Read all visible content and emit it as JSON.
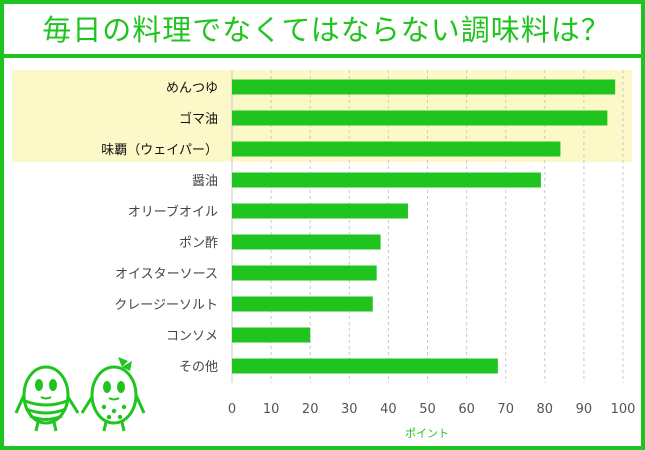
{
  "title": "毎日の料理でなくてはならない調味料は？",
  "chart_data": {
    "type": "bar",
    "orientation": "horizontal",
    "categories": [
      "めんつゆ",
      "ゴマ油",
      "味覇（ウェイパー）",
      "醤油",
      "オリーブオイル",
      "ポン酢",
      "オイスターソース",
      "クレージーソルト",
      "コンソメ",
      "その他"
    ],
    "values": [
      98,
      96,
      84,
      79,
      45,
      38,
      37,
      36,
      20,
      68
    ],
    "xlim": [
      0,
      100
    ],
    "xticks": [
      0,
      10,
      20,
      30,
      40,
      50,
      60,
      70,
      80,
      90,
      100
    ],
    "xlabel": "ポイント",
    "ylabel": "",
    "highlighted_categories": [
      "めんつゆ",
      "ゴマ油",
      "味覇（ウェイパー）"
    ],
    "grid": "vertical-dashed",
    "bar_color": "#1fc41f",
    "highlight_color": "#fdf8c8"
  },
  "colors": {
    "accent": "#1fc41f",
    "highlight": "#fdf8c8",
    "grid": "#c8c8c8"
  },
  "decoration": {
    "icon": "egg-mascots-icon"
  }
}
